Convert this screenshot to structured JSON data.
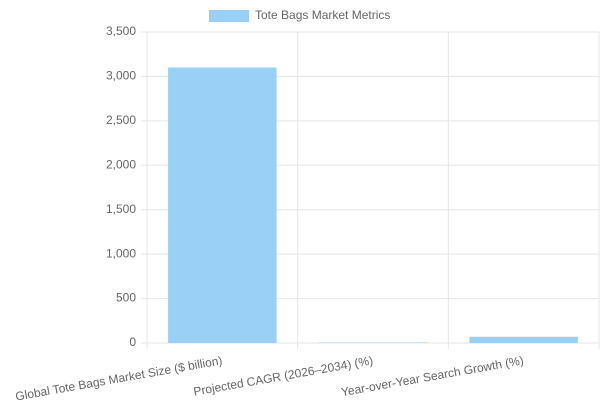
{
  "chart_data": {
    "type": "bar",
    "categories": [
      "Global Tote Bags Market Size ($ billion)",
      "Projected CAGR (2026–2034) (%)",
      "Year-over-Year Search Growth (%)"
    ],
    "series": [
      {
        "name": "Tote Bags Market Metrics",
        "color": "#9ad0f5",
        "values": [
          3100,
          6,
          70
        ]
      }
    ],
    "ylim": [
      0,
      3500
    ],
    "yticks": [
      0,
      500,
      {
        "value": 1000,
        "label": "1,000"
      },
      {
        "value": 1500,
        "label": "1,500"
      },
      {
        "value": 2000,
        "label": "2,000"
      },
      {
        "value": 2500,
        "label": "2,500"
      },
      {
        "value": 3000,
        "label": "3,000"
      },
      {
        "value": 3500,
        "label": "3,500"
      }
    ],
    "grid": true,
    "legend": "top"
  }
}
